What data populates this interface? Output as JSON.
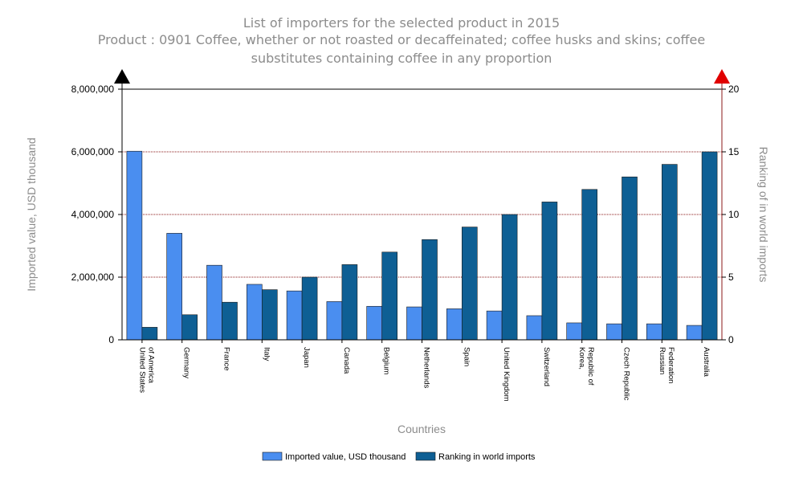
{
  "chart_data": {
    "type": "bar",
    "title": "List of importers for the selected product in 2015",
    "subtitle_lines": [
      "Product : 0901 Coffee, whether or not roasted or decaffeinated; coffee husks and skins; coffee",
      "substitutes containing coffee in any proportion"
    ],
    "xlabel": "Countries",
    "ylabel": "Imported value, USD thousand",
    "y2label": "Ranking of in world imports",
    "ylim": [
      0,
      8000000
    ],
    "y2lim": [
      0,
      20
    ],
    "yticks": [
      "0",
      "2,000,000",
      "4,000,000",
      "6,000,000",
      "8,000,000"
    ],
    "y2ticks": [
      "0",
      "5",
      "10",
      "15",
      "20"
    ],
    "grid": true,
    "legend_position": "bottom",
    "categories": [
      [
        "United States",
        "of America"
      ],
      [
        "Germany"
      ],
      [
        "France"
      ],
      [
        "Italy"
      ],
      [
        "Japan"
      ],
      [
        "Canada"
      ],
      [
        "Belgium"
      ],
      [
        "Netherlands"
      ],
      [
        "Spain"
      ],
      [
        "United Kingdom"
      ],
      [
        "Switzerland"
      ],
      [
        "Korea,",
        "Republic of"
      ],
      [
        "Czech Republic"
      ],
      [
        "Russian",
        "Federation"
      ],
      [
        "Australia"
      ]
    ],
    "series": [
      {
        "name": "Imported value, USD thousand",
        "axis": "left",
        "color": "#4a8ef0",
        "values": [
          6020000,
          3400000,
          2380000,
          1770000,
          1560000,
          1220000,
          1070000,
          1050000,
          990000,
          920000,
          770000,
          540000,
          510000,
          510000,
          460000
        ]
      },
      {
        "name": "Ranking in world imports",
        "axis": "right",
        "color": "#0e5f94",
        "values": [
          1,
          2,
          3,
          4,
          5,
          6,
          7,
          8,
          9,
          10,
          11,
          12,
          13,
          14,
          15
        ]
      }
    ],
    "colors": {
      "left_arrow": "#000000",
      "right_arrow": "#e00000",
      "gridline": "#8b1a1a",
      "axis_title": "#8c8c8c"
    }
  }
}
